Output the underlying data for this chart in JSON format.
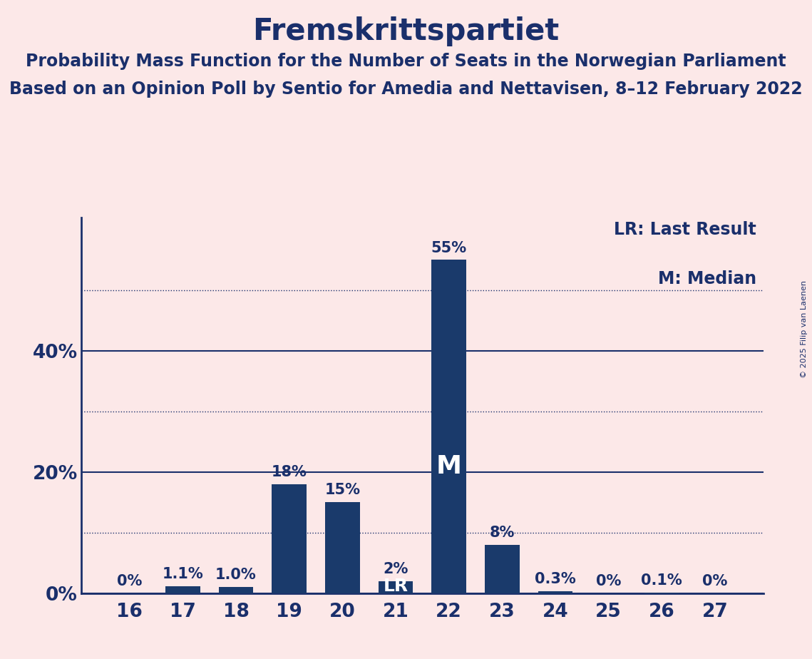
{
  "title": "Fremskrittspartiet",
  "subtitle1": "Probability Mass Function for the Number of Seats in the Norwegian Parliament",
  "subtitle2": "Based on an Opinion Poll by Sentio for Amedia and Nettavisen, 8–12 February 2022",
  "copyright": "© 2025 Filip van Laenen",
  "seats": [
    16,
    17,
    18,
    19,
    20,
    21,
    22,
    23,
    24,
    25,
    26,
    27
  ],
  "probabilities": [
    0.0,
    1.1,
    1.0,
    18.0,
    15.0,
    2.0,
    55.0,
    8.0,
    0.3,
    0.0,
    0.1,
    0.0
  ],
  "bar_color": "#1a3a6b",
  "background_color": "#fce8e8",
  "text_color": "#1a2f6b",
  "bar_labels": [
    "0%",
    "1.1%",
    "1.0%",
    "18%",
    "15%",
    "2%",
    "55%",
    "8%",
    "0.3%",
    "0%",
    "0.1%",
    "0%"
  ],
  "lr_seat": 21,
  "median_seat": 22,
  "yticks": [
    0,
    20,
    40
  ],
  "ytick_labels": [
    "0%",
    "20%",
    "40%"
  ],
  "dotted_lines": [
    10,
    30,
    50
  ],
  "solid_lines": [
    0,
    20,
    40
  ],
  "ylim": [
    0,
    62
  ],
  "legend_lr": "LR: Last Result",
  "legend_m": "M: Median",
  "title_fontsize": 30,
  "subtitle_fontsize": 17,
  "bar_label_fontsize": 15,
  "axis_label_fontsize": 19,
  "legend_fontsize": 17
}
